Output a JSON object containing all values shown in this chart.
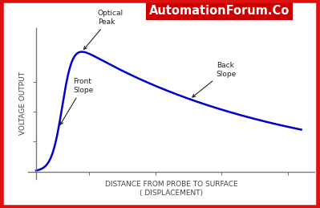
{
  "title": "AutomationForum.Co",
  "xlabel_line1": "DISTANCE FROM PROBE TO SURFACE",
  "xlabel_line2": "( DISPLACEMENT)",
  "ylabel": "VOLTAGE OUTPUT",
  "curve_color": "#0000CC",
  "curve_linewidth": 1.8,
  "background_color": "#ffffff",
  "border_color": "#dd1111",
  "border_linewidth": 4,
  "annotation_front_slope": "Front\nSlope",
  "annotation_optical_peak": "Optical\nPeak",
  "annotation_back_slope": "Back\nSlope",
  "title_bg_color": "#cc0000",
  "title_text_color": "#ffffff",
  "axis_color": "#777777",
  "tick_color": "#777777",
  "annotation_color": "#222222",
  "annotation_fontsize": 6.5,
  "label_fontsize": 6.5,
  "ylabel_fontsize": 6.5
}
